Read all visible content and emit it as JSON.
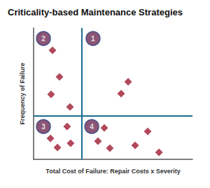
{
  "chart_data": {
    "type": "scatter",
    "title": "Criticality-based Maintenance Strategies",
    "xlabel": "Total Cost of Failure: Repair Costs x Severity",
    "ylabel": "Frequency of Failure",
    "x": [
      1.19,
      1.63,
      1.1,
      2.29,
      5.51,
      5.95,
      1.06,
      2.11,
      2.33,
      1.5,
      4.45,
      4.05,
      4.8,
      6.39,
      7.18,
      7.89
    ],
    "values": [
      8.3,
      6.28,
      4.95,
      3.99,
      5.0,
      5.9,
      1.6,
      2.5,
      1.22,
      0.9,
      2.39,
      1.38,
      0.85,
      1.06,
      2.13,
      0.53
    ],
    "color": "#9e1b32",
    "marker": "diamond",
    "xlim": [
      0,
      10
    ],
    "ylim": [
      0,
      10
    ],
    "xticks": [
      0,
      10
    ],
    "yticks": [
      0,
      10
    ],
    "tick_labels": false,
    "grid": false,
    "dividers": {
      "x": 3.04,
      "y": 3.3,
      "color": "#1a6e8e"
    },
    "quadrants": {
      "labels": [
        "1",
        "2",
        "3",
        "4"
      ],
      "x": [
        3.74,
        0.62,
        0.62,
        3.66
      ],
      "y": [
        9.2,
        9.2,
        2.5,
        2.5
      ],
      "color": "#6e2b52",
      "marker": "circle"
    }
  }
}
